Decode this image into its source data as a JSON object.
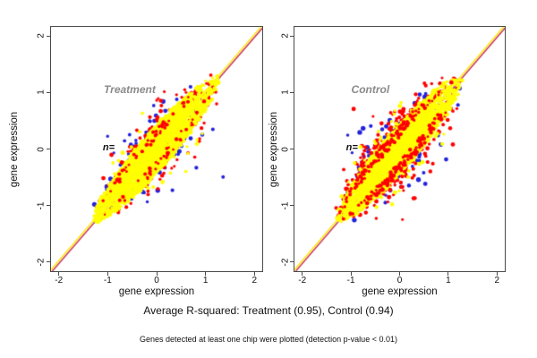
{
  "figure": {
    "background": "#ffffff"
  },
  "caption": {
    "text": "Average R-squared: Treatment (0.95), Control (0.94)"
  },
  "footnote": {
    "text": "Genes detected at least one chip were plotted (detection p-value < 0.01)"
  },
  "palette": {
    "chip_yellow": "#ffff00",
    "chip_red": "#ff0000",
    "chip_blue": "#2222dd",
    "identity_line_top": "#ffe600",
    "identity_line_bottom": "#c62a53",
    "annotation_gray": "#8a8a8a",
    "axis_color": "#4a4a4a"
  },
  "chart_data": [
    {
      "type": "scatter",
      "title": "Treatment",
      "r_squared": 0.95,
      "xlabel": "gene expression",
      "ylabel": "gene expression",
      "xlim": [
        -2.16,
        2.16
      ],
      "ylim": [
        -2.16,
        2.16
      ],
      "xticks": [
        -2,
        -1,
        0,
        1,
        2
      ],
      "yticks": [
        -2,
        -1,
        0,
        1,
        2
      ],
      "grid": false,
      "annotation": {
        "text": "Treatment",
        "x": -0.55,
        "y": 1.05
      },
      "n_label": {
        "text": "n=",
        "x": -1.1,
        "y": 0.02
      },
      "identity_line": {
        "slope": 1,
        "intercept": 0
      },
      "points_model": {
        "seed": 1337,
        "description": "Dense spindle-shaped cloud of gene expression values along the y=x diagonal from (-1.25,-1.25) to (1.25,1.25); yellow chip points form the solid core, red chip points ring the core, blue chip points form the outer fringe with scattered outliers.",
        "series": [
          {
            "name": "chip-blue",
            "color": "#2222dd",
            "n": 150,
            "len": 1.22,
            "t_mean": -0.05,
            "t_sd": 0.5,
            "w_max": 0.46,
            "mode": "fringe",
            "out_frac": 0.1,
            "bias": 0.1,
            "r": 2.2
          },
          {
            "name": "chip-red",
            "color": "#ff0000",
            "n": 520,
            "len": 1.25,
            "t_mean": -0.05,
            "t_sd": 0.52,
            "w_max": 0.36,
            "mode": "fringe",
            "out_frac": 0.05,
            "bias": 0.0,
            "r": 2.0
          },
          {
            "name": "chip-yellow",
            "color": "#ffff00",
            "n": 2800,
            "len": 1.27,
            "t_mean": -0.08,
            "t_sd": 0.5,
            "w_max": 0.29,
            "mode": "band",
            "out_frac": 0.025,
            "bias": 0.0,
            "r": 2.0
          },
          {
            "name": "chip-red-speckle",
            "color": "#ff0000",
            "n": 90,
            "len": 1.2,
            "t_mean": -0.05,
            "t_sd": 0.5,
            "w_max": 0.27,
            "mode": "overlay",
            "out_frac": 0.0,
            "bias": 0.0,
            "r": 1.8
          }
        ]
      }
    },
    {
      "type": "scatter",
      "title": "Control",
      "r_squared": 0.94,
      "xlabel": "gene expression",
      "ylabel": "gene expression",
      "xlim": [
        -2.16,
        2.16
      ],
      "ylim": [
        -2.16,
        2.16
      ],
      "xticks": [
        -2,
        -1,
        0,
        1,
        2
      ],
      "yticks": [
        -2,
        -1,
        0,
        1,
        2
      ],
      "grid": false,
      "annotation": {
        "text": "Control",
        "x": -0.6,
        "y": 1.05
      },
      "n_label": {
        "text": "n=",
        "x": -1.1,
        "y": 0.02
      },
      "identity_line": {
        "slope": 1,
        "intercept": 0
      },
      "points_model": {
        "seed": 7331,
        "description": "Same spindle-shaped diagonal cloud as Treatment but noisier: wider red and blue fringes on both sides of the yellow core and more red speckle on top of the cloud edges.",
        "series": [
          {
            "name": "chip-blue",
            "color": "#2222dd",
            "n": 175,
            "len": 1.22,
            "t_mean": -0.05,
            "t_sd": 0.5,
            "w_max": 0.52,
            "mode": "fringe",
            "out_frac": 0.12,
            "bias": 0.05,
            "r": 2.2
          },
          {
            "name": "chip-red",
            "color": "#ff0000",
            "n": 850,
            "len": 1.25,
            "t_mean": -0.08,
            "t_sd": 0.52,
            "w_max": 0.44,
            "mode": "fringe",
            "out_frac": 0.07,
            "bias": 0.04,
            "r": 2.0
          },
          {
            "name": "chip-yellow",
            "color": "#ffff00",
            "n": 3000,
            "len": 1.27,
            "t_mean": -0.08,
            "t_sd": 0.5,
            "w_max": 0.3,
            "mode": "band",
            "out_frac": 0.03,
            "bias": 0.0,
            "r": 2.0
          },
          {
            "name": "chip-red-speckle",
            "color": "#ff0000",
            "n": 260,
            "len": 1.22,
            "t_mean": -0.05,
            "t_sd": 0.5,
            "w_max": 0.3,
            "mode": "overlay",
            "out_frac": 0.0,
            "bias": 0.0,
            "r": 1.9
          }
        ]
      }
    }
  ]
}
